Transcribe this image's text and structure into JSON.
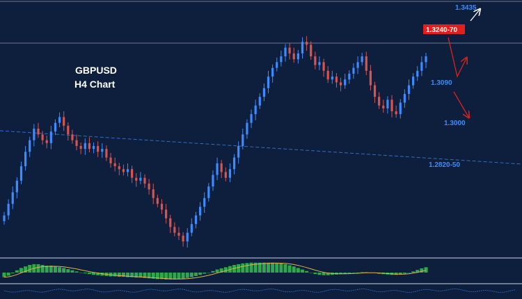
{
  "colors": {
    "background": "#0d1f3c",
    "bull_candle": "#3d8bff",
    "bear_candle": "#d9534f",
    "macd_histogram": "#2ea84a",
    "signal_line": "#e2b34a",
    "trendline": "#2f6fc7",
    "price_line": "#8a9ab0",
    "resistance_label_bg": "#e0201c",
    "projection_up": "#ffffff",
    "projection_down": "#e0201c"
  },
  "chart_data": {
    "type": "candlestick",
    "title": "GBPUSD",
    "subtitle": "H4 Chart",
    "ylim": [
      1.256,
      1.344
    ],
    "grid": false,
    "trendline": {
      "style": "dashed",
      "start": 1.295,
      "end": 1.282
    },
    "current_price_line": 1.324,
    "levels": [
      {
        "label": "1.3435",
        "value": 1.3435,
        "style": "blue-text"
      },
      {
        "label": "1.3240-70",
        "value": 1.324,
        "style": "red-box"
      },
      {
        "label": "1.3090",
        "value": 1.309,
        "style": "blue-text"
      },
      {
        "label": "1.3000",
        "value": 1.3,
        "style": "blue-text"
      },
      {
        "label": "1.2820-50",
        "value": 1.282,
        "style": "blue-text"
      }
    ],
    "series": [
      {
        "values": [
          1.27,
          1.274,
          1.278,
          1.282,
          1.287,
          1.292,
          1.296,
          1.3,
          1.298,
          1.296,
          1.295,
          1.299,
          1.302,
          1.304,
          1.301,
          1.298,
          1.296,
          1.294,
          1.293,
          1.295,
          1.293,
          1.294,
          1.292,
          1.293,
          1.29,
          1.288,
          1.287,
          1.286,
          1.285,
          1.286,
          1.283,
          1.282,
          1.283,
          1.281,
          1.279,
          1.276,
          1.274,
          1.272,
          1.269,
          1.266,
          1.264,
          1.263,
          1.261,
          1.264,
          1.267,
          1.27,
          1.273,
          1.276,
          1.28,
          1.284,
          1.288,
          1.285,
          1.283,
          1.286,
          1.29,
          1.294,
          1.298,
          1.302,
          1.305,
          1.308,
          1.311,
          1.314,
          1.318,
          1.321,
          1.323,
          1.325,
          1.328,
          1.326,
          1.324,
          1.326,
          1.33,
          1.329,
          1.325,
          1.322,
          1.323,
          1.32,
          1.317,
          1.318,
          1.316,
          1.315,
          1.317,
          1.319,
          1.321,
          1.323,
          1.325,
          1.32,
          1.315,
          1.311,
          1.308,
          1.307,
          1.31,
          1.306,
          1.305,
          1.309,
          1.312,
          1.315,
          1.318,
          1.32,
          1.323,
          1.325
        ]
      }
    ],
    "macd_histogram": [
      -12,
      -8,
      -2,
      6,
      12,
      16,
      20,
      22,
      22,
      20,
      18,
      18,
      16,
      14,
      12,
      9,
      6,
      3,
      0,
      -2,
      -4,
      -6,
      -7,
      -8,
      -9,
      -10,
      -10,
      -11,
      -11,
      -12,
      -12,
      -13,
      -13,
      -14,
      -15,
      -16,
      -17,
      -17,
      -18,
      -18,
      -18,
      -17,
      -16,
      -14,
      -12,
      -9,
      -6,
      -3,
      0,
      4,
      8,
      11,
      14,
      17,
      20,
      22,
      24,
      25,
      26,
      26,
      26,
      26,
      26,
      26,
      25,
      24,
      22,
      19,
      16,
      12,
      8,
      4,
      0,
      -4,
      -6,
      -7,
      -7,
      -6,
      -5,
      -4,
      -3,
      -2,
      -1,
      0,
      1,
      1,
      0,
      -1,
      -3,
      -4,
      -5,
      -6,
      -6,
      -5,
      -3,
      0,
      3,
      7,
      11,
      14
    ]
  }
}
